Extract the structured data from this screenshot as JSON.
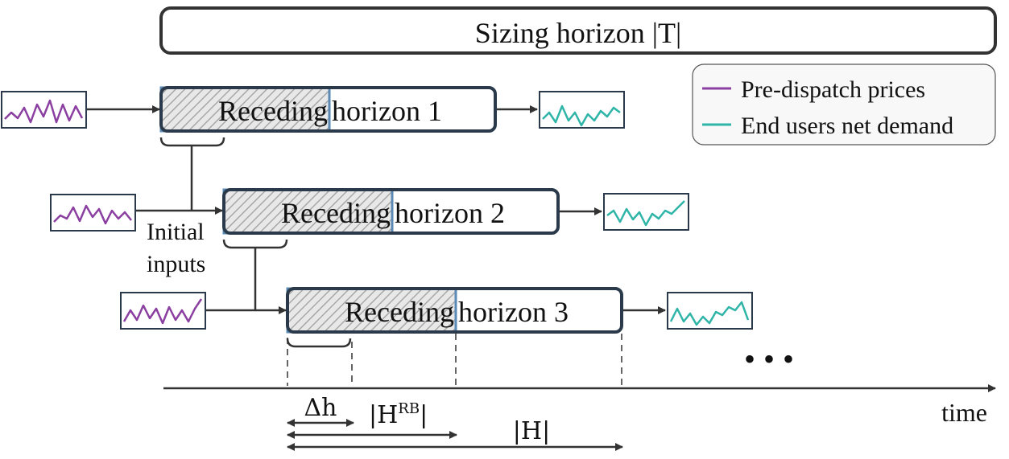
{
  "title": "Sizing horizon |T|",
  "legend": {
    "items": [
      {
        "label": "Pre-dispatch prices",
        "color": "#8b3fa0"
      },
      {
        "label": "End users net demand",
        "color": "#2fb5a8"
      }
    ]
  },
  "horizons": [
    {
      "label_a": "Receding",
      "label_b": "horizon 1"
    },
    {
      "label_a": "Receding",
      "label_b": "horizon 2"
    },
    {
      "label_a": "Receding",
      "label_b": "horizon 3"
    }
  ],
  "initial_inputs": {
    "line1": "Initial",
    "line2": "inputs"
  },
  "ellipsis": "• • •",
  "axis": {
    "label": "time"
  },
  "intervals": {
    "delta_h": "Δh",
    "h_rb_main": "|H",
    "h_rb_sup": "RB",
    "h_rb_close": "|",
    "h": "|H|"
  },
  "colors": {
    "prices": "#8b3fa0",
    "demand": "#2fb5a8",
    "hatch_border": "#5a8ab5"
  }
}
